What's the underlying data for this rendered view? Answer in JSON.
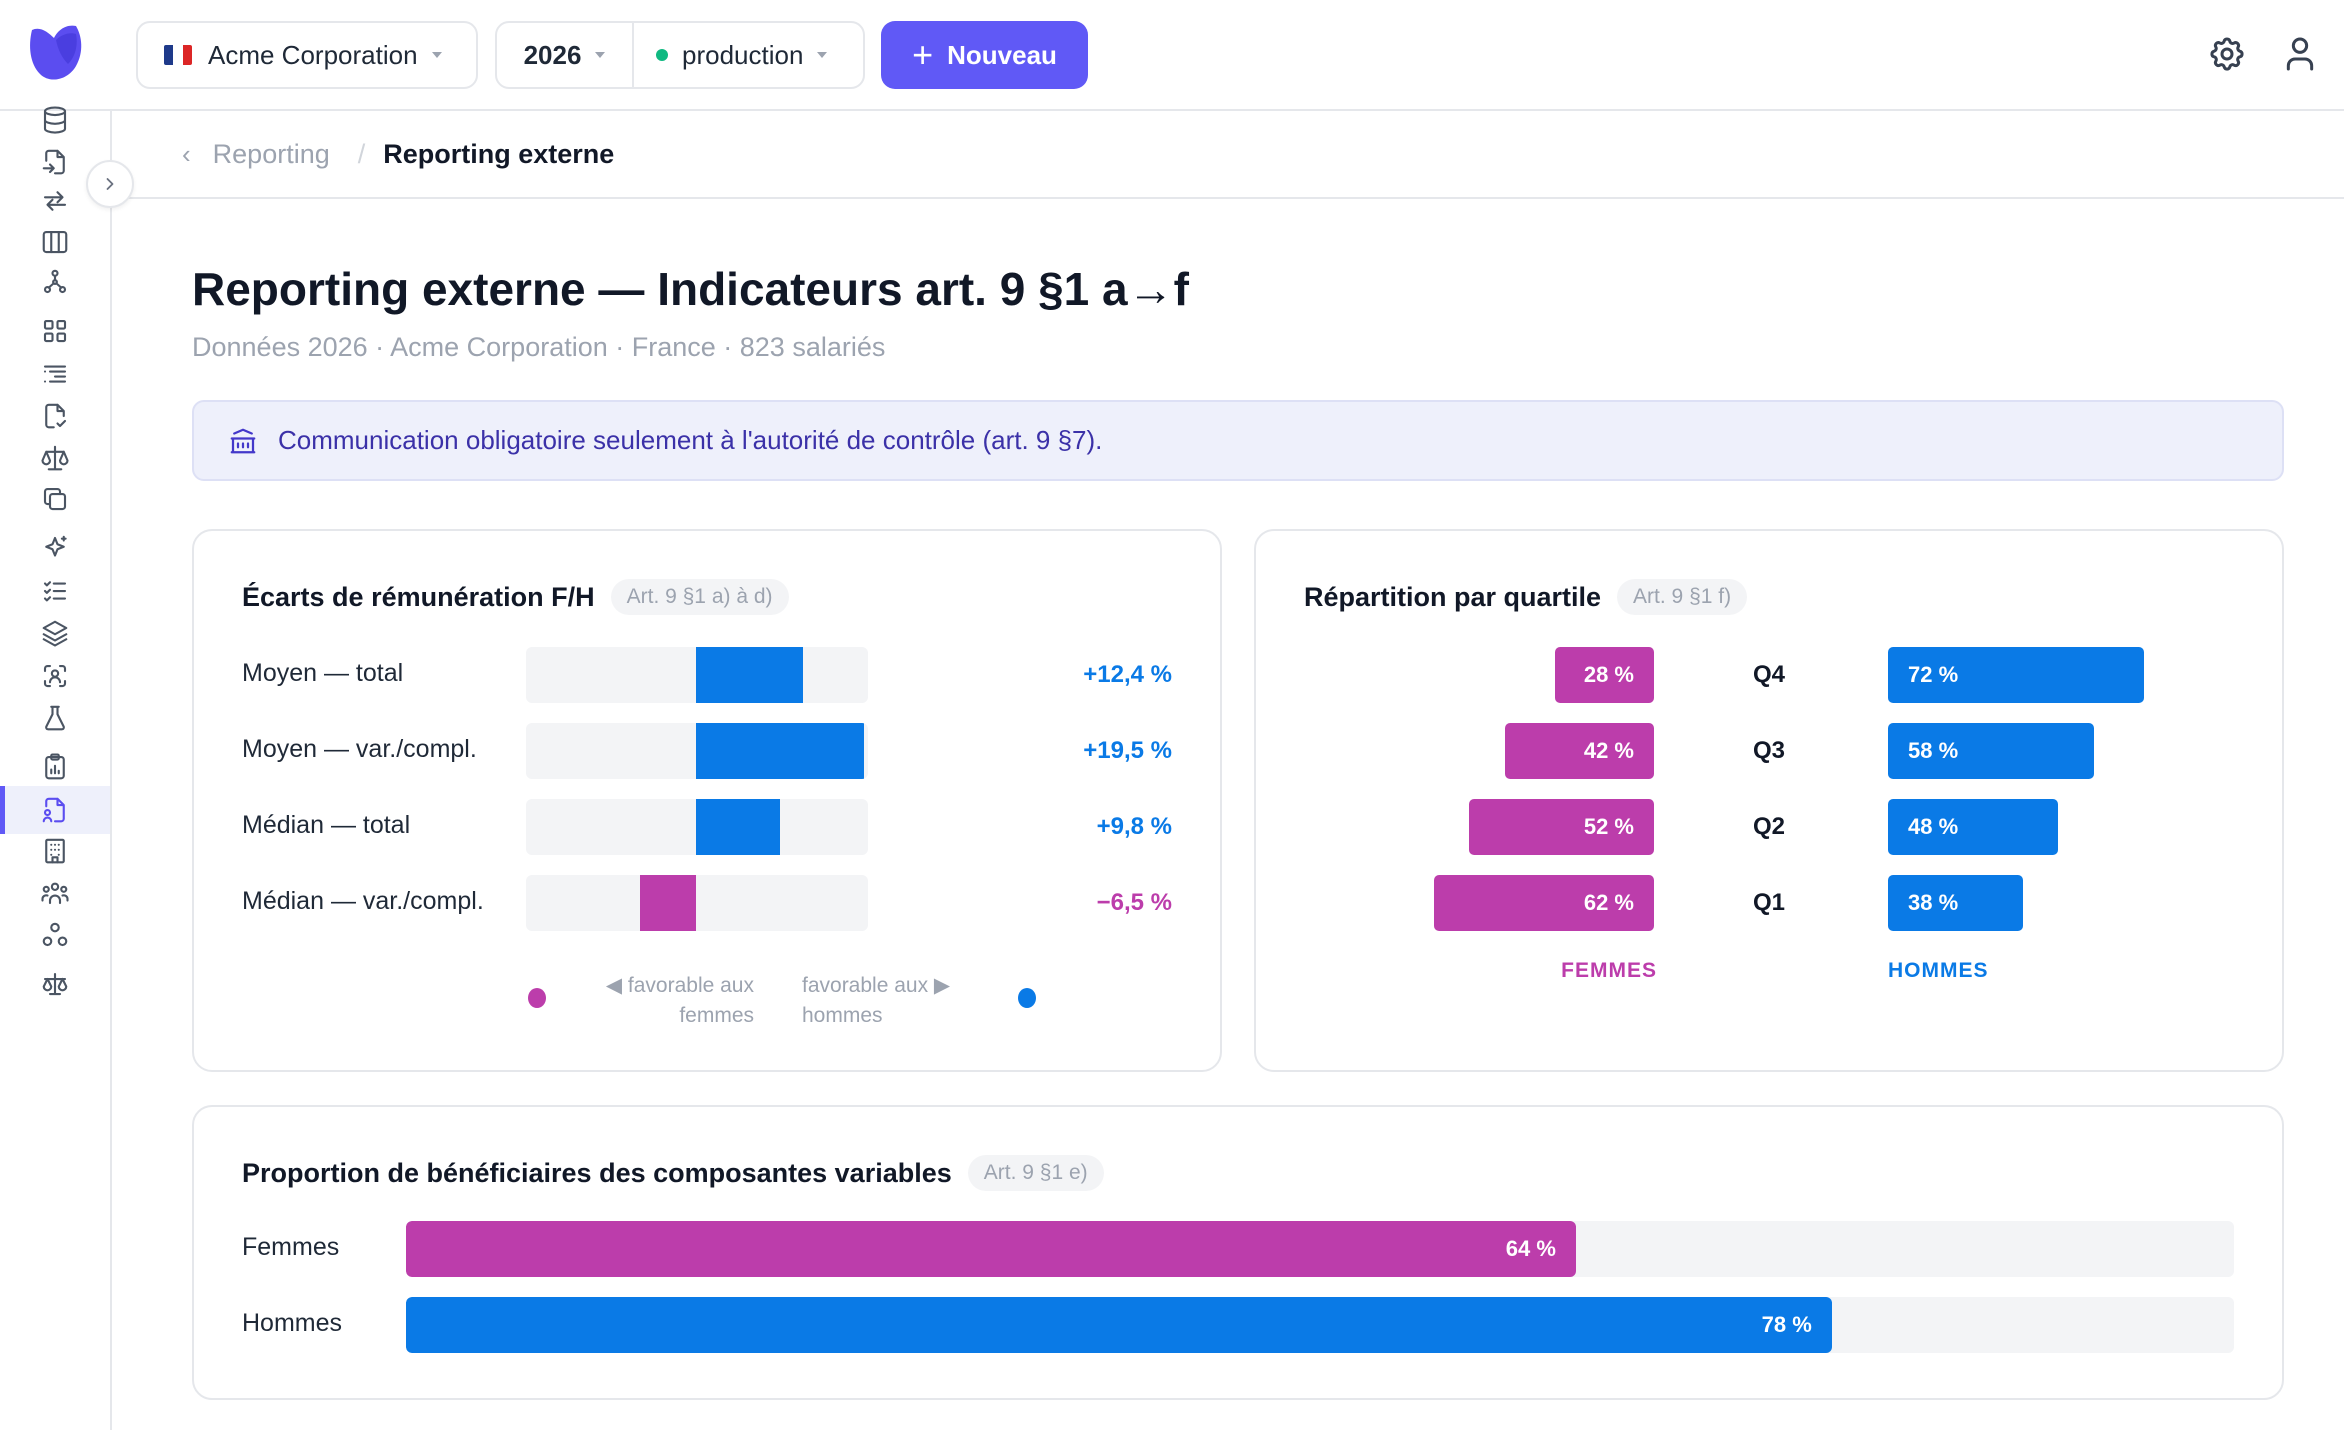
{
  "colors": {
    "accent": "#6059f6",
    "female": "#bc3dab",
    "male": "#0a7ae6",
    "env_dot": "#10b981"
  },
  "topbar": {
    "org": "Acme Corporation",
    "year": "2026",
    "env": "production",
    "new_button": "Nouveau"
  },
  "breadcrumb": {
    "parent": "Reporting",
    "sep": "/",
    "current": "Reporting externe"
  },
  "page": {
    "title": "Reporting externe — Indicateurs art. 9 §1 a→f",
    "subtitle": "Données 2026 · Acme Corporation · France · 823 salariés"
  },
  "banner": {
    "text": "Communication obligatoire seulement à l'autorité de contrôle (art. 9 §7)."
  },
  "pay_gap": {
    "title": "Écarts de rémunération F/H",
    "ref": "Art. 9 §1 a) à d)",
    "scale_max": 20,
    "rows": [
      {
        "label": "Moyen — total",
        "value": 12.4,
        "text": "+12,4 %"
      },
      {
        "label": "Moyen — var./compl.",
        "value": 19.5,
        "text": "+19,5 %"
      },
      {
        "label": "Médian — total",
        "value": 9.8,
        "text": "+9,8 %"
      },
      {
        "label": "Médian — var./compl.",
        "value": -6.5,
        "text": "−6,5 %"
      }
    ],
    "legend_left_1": "◀ favorable aux",
    "legend_left_2": "femmes",
    "legend_right_1": "favorable aux ▶",
    "legend_right_2": "hommes"
  },
  "quartiles": {
    "title": "Répartition par quartile",
    "ref": "Art. 9 §1 f)",
    "rows": [
      {
        "q": "Q4",
        "women": 28,
        "women_text": "28 %",
        "men": 72,
        "men_text": "72 %"
      },
      {
        "q": "Q3",
        "women": 42,
        "women_text": "42 %",
        "men": 58,
        "men_text": "58 %"
      },
      {
        "q": "Q2",
        "women": 52,
        "women_text": "52 %",
        "men": 48,
        "men_text": "48 %"
      },
      {
        "q": "Q1",
        "women": 62,
        "women_text": "62 %",
        "men": 38,
        "men_text": "38 %"
      }
    ],
    "women_label": "FEMMES",
    "men_label": "HOMMES"
  },
  "variable": {
    "title": "Proportion de bénéficiaires des composantes variables",
    "ref": "Art. 9 §1 e)",
    "rows": [
      {
        "label": "Femmes",
        "value": 64,
        "text": "64 %",
        "color": "#bc3dab"
      },
      {
        "label": "Hommes",
        "value": 78,
        "text": "78 %",
        "color": "#0a7ae6"
      }
    ]
  },
  "sidebar": {
    "icons": [
      "database-icon",
      "file-import-icon",
      "transfer-icon",
      "columns-icon",
      "graph-icon",
      "dashboard-icon",
      "list-indent-icon",
      "file-check-icon",
      "scale-icon",
      "copy-icon",
      "sparkles-icon",
      "checklist-icon",
      "layers-icon",
      "face-scan-icon",
      "flask-icon",
      "clipboard-chart-icon",
      "report-icon",
      "building-icon",
      "users-group-icon",
      "org-chart-icon",
      "justice-icon"
    ],
    "active_index": 16
  }
}
